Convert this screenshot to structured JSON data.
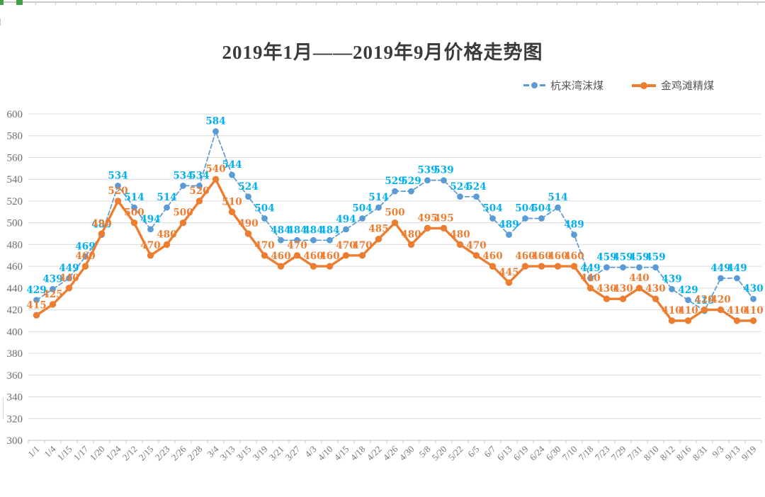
{
  "chart_data": {
    "type": "line",
    "title": "2019年1月——2019年9月价格走势图",
    "xlabel": "",
    "ylabel": "",
    "ylim": [
      300,
      600
    ],
    "ytick_step": 20,
    "grid": true,
    "legend_position": "top-right",
    "data_labels": true,
    "categories": [
      "1/1",
      "1/4",
      "1/15",
      "1/17",
      "1/20",
      "1/24",
      "2/12",
      "2/15",
      "2/23",
      "2/26",
      "2/28",
      "3/4",
      "3/13",
      "3/15",
      "3/19",
      "3/21",
      "3/27",
      "4/3",
      "4/10",
      "4/15",
      "4/18",
      "4/22",
      "4/26",
      "4/30",
      "5/8",
      "5/20",
      "5/22",
      "6/5",
      "6/7",
      "6/13",
      "6/19",
      "6/24",
      "6/30",
      "7/10",
      "7/18",
      "7/23",
      "7/29",
      "7/31",
      "8/10",
      "8/12",
      "8/16",
      "8/31",
      "9/3",
      "9/13",
      "9/19"
    ],
    "series": [
      {
        "name": "杭来湾沫煤",
        "style": "dashed",
        "color": "#5b9bd5",
        "label_color": "#00b0f0",
        "values": [
          429,
          439,
          449,
          469,
          489,
          534,
          514,
          494,
          514,
          534,
          534,
          584,
          544,
          524,
          504,
          484,
          484,
          484,
          484,
          494,
          504,
          514,
          529,
          529,
          539,
          539,
          524,
          524,
          504,
          489,
          504,
          504,
          514,
          489,
          449,
          459,
          459,
          459,
          459,
          439,
          429,
          419,
          449,
          449,
          430
        ]
      },
      {
        "name": "金鸡滩精煤",
        "style": "solid",
        "color": "#ed7d31",
        "label_color": "#ed7d31",
        "values": [
          415,
          425,
          440,
          460,
          490,
          520,
          500,
          470,
          480,
          500,
          520,
          540,
          510,
          490,
          470,
          460,
          470,
          460,
          460,
          470,
          470,
          485,
          500,
          480,
          495,
          495,
          480,
          470,
          460,
          445,
          460,
          460,
          460,
          460,
          440,
          430,
          430,
          440,
          430,
          410,
          410,
          420,
          420,
          410,
          410
        ]
      }
    ]
  }
}
